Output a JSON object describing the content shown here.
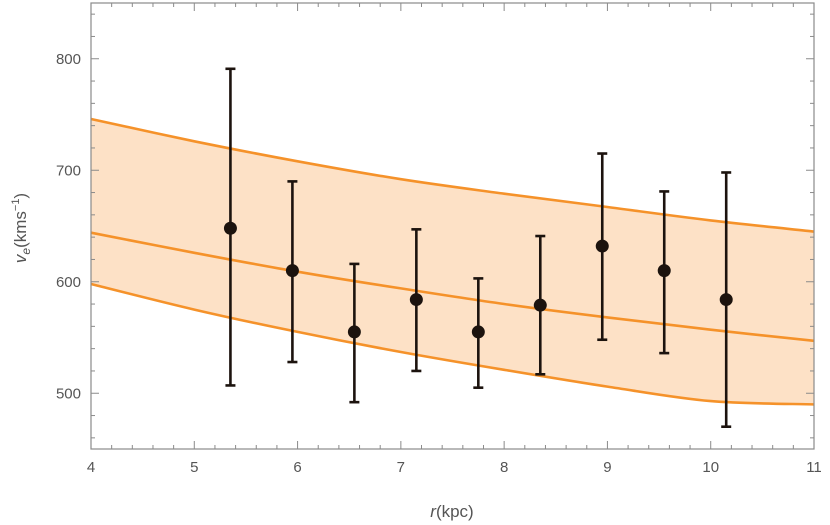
{
  "chart_data": {
    "type": "scatter",
    "title": "",
    "xlabel": {
      "symbol": "r",
      "unit": "(kpc)"
    },
    "ylabel": {
      "symbol": "v",
      "subscript": "e",
      "unit": "(kms",
      "exponent": "−1",
      "close": ")"
    },
    "xlim": [
      4,
      11
    ],
    "ylim": [
      450,
      850
    ],
    "x_ticks": [
      4,
      5,
      6,
      7,
      8,
      9,
      10,
      11
    ],
    "y_ticks": [
      500,
      600,
      700,
      800
    ],
    "grid": false,
    "legend": "none",
    "points": [
      {
        "x": 5.35,
        "y": 648,
        "yerr_low": 507,
        "yerr_high": 791
      },
      {
        "x": 5.95,
        "y": 610,
        "yerr_low": 528,
        "yerr_high": 690
      },
      {
        "x": 6.55,
        "y": 555,
        "yerr_low": 492,
        "yerr_high": 616
      },
      {
        "x": 7.15,
        "y": 584,
        "yerr_low": 520,
        "yerr_high": 647
      },
      {
        "x": 7.75,
        "y": 555,
        "yerr_low": 505,
        "yerr_high": 603
      },
      {
        "x": 8.35,
        "y": 579,
        "yerr_low": 517,
        "yerr_high": 641
      },
      {
        "x": 8.95,
        "y": 632,
        "yerr_low": 548,
        "yerr_high": 715
      },
      {
        "x": 9.55,
        "y": 610,
        "yerr_low": 536,
        "yerr_high": 681
      },
      {
        "x": 10.15,
        "y": 584,
        "yerr_low": 470,
        "yerr_high": 698
      }
    ],
    "band": {
      "x": [
        4,
        5,
        6,
        7,
        8,
        9,
        10,
        11
      ],
      "upper": [
        746,
        726,
        708,
        692,
        679,
        667,
        655,
        645
      ],
      "middle": [
        644,
        626,
        609,
        594,
        580,
        568,
        557,
        547
      ],
      "lower": [
        598,
        575,
        555,
        537,
        521,
        506,
        493,
        490
      ]
    },
    "colors": {
      "band_fill": "#fde1c6",
      "curve": "#f5922a",
      "marker": "#1c130e",
      "frame": "#8a8a8a"
    }
  }
}
